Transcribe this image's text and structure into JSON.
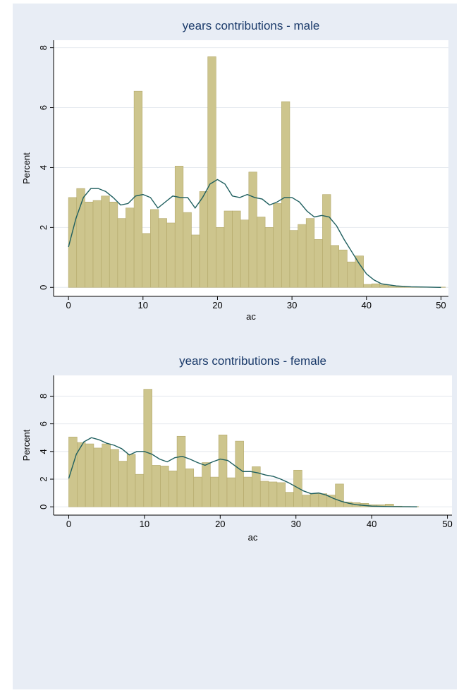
{
  "chart_data": [
    {
      "type": "histogram",
      "title": "years contributions - male",
      "x_label": "ac",
      "y_label": "Percent",
      "bins": [
        0,
        1.1,
        2.2,
        3.3,
        4.4,
        5.5,
        6.6,
        7.7,
        8.8,
        9.9,
        11,
        12.1,
        13.2,
        14.3,
        15.4,
        16.5,
        17.6,
        18.7,
        19.8,
        20.9,
        22,
        23.1,
        24.2,
        25.3,
        26.4,
        27.5,
        28.6,
        29.7,
        30.8,
        31.9,
        33,
        34.1,
        35.2,
        36.3,
        37.4,
        38.5,
        39.6,
        40.7,
        41.8,
        42.9,
        44,
        45.1,
        46.2,
        47.3,
        48.4,
        49.5,
        50.6
      ],
      "values": [
        3.0,
        3.3,
        2.85,
        2.9,
        3.05,
        2.85,
        2.3,
        2.65,
        6.55,
        1.8,
        2.6,
        2.3,
        2.15,
        4.05,
        2.5,
        1.75,
        3.2,
        7.7,
        2.0,
        2.55,
        2.55,
        2.25,
        3.85,
        2.35,
        2.0,
        2.8,
        6.2,
        1.9,
        2.1,
        2.3,
        1.6,
        3.1,
        1.4,
        1.25,
        0.85,
        1.05,
        0.1,
        0.12,
        0.08,
        0.05,
        0.03,
        0.02,
        0.02,
        0.01,
        0.01,
        0.01
      ],
      "color": "#cdc58d",
      "density": {
        "color": "#1f5f5f",
        "x": [
          0,
          1,
          2,
          3,
          4,
          5,
          6,
          7,
          8,
          9,
          10,
          11,
          12,
          13,
          14,
          15,
          16,
          17,
          18,
          19,
          20,
          21,
          22,
          23,
          24,
          25,
          26,
          27,
          28,
          29,
          30,
          31,
          32,
          33,
          34,
          35,
          36,
          37,
          38,
          39,
          40,
          41,
          42,
          44,
          46,
          48,
          50
        ],
        "values": [
          1.35,
          2.3,
          3.0,
          3.3,
          3.3,
          3.2,
          3.0,
          2.75,
          2.8,
          3.05,
          3.1,
          3.0,
          2.65,
          2.85,
          3.05,
          3.0,
          3.0,
          2.65,
          3.0,
          3.45,
          3.6,
          3.45,
          3.05,
          3.0,
          3.1,
          3.0,
          2.95,
          2.75,
          2.85,
          3.0,
          3.0,
          2.85,
          2.55,
          2.35,
          2.4,
          2.35,
          2.05,
          1.6,
          1.2,
          0.8,
          0.45,
          0.25,
          0.12,
          0.05,
          0.02,
          0.01,
          0
        ]
      },
      "xlim": [
        -2,
        51
      ],
      "ylim": [
        -0.3,
        8.25
      ],
      "xticks": [
        0,
        10,
        20,
        30,
        40,
        50
      ],
      "yticks": [
        0,
        2,
        4,
        6,
        8
      ],
      "grid": true
    },
    {
      "type": "histogram",
      "title": "years contributions - female",
      "x_label": "ac",
      "y_label": "Percent",
      "bins": [
        0,
        1.1,
        2.2,
        3.3,
        4.4,
        5.5,
        6.6,
        7.7,
        8.8,
        9.9,
        11,
        12.1,
        13.2,
        14.3,
        15.4,
        16.5,
        17.6,
        18.7,
        19.8,
        20.9,
        22,
        23.1,
        24.2,
        25.3,
        26.4,
        27.5,
        28.6,
        29.7,
        30.8,
        31.9,
        33,
        34.1,
        35.2,
        36.3,
        37.4,
        38.5,
        39.6,
        40.7,
        41.8,
        42.9,
        44,
        45.1,
        46.2
      ],
      "values": [
        5.05,
        4.65,
        4.55,
        4.25,
        4.55,
        4.15,
        3.3,
        3.8,
        2.35,
        8.5,
        3.0,
        2.95,
        2.6,
        5.1,
        2.75,
        2.15,
        3.2,
        2.15,
        5.2,
        2.1,
        4.75,
        2.15,
        2.9,
        1.85,
        1.8,
        1.75,
        1.05,
        2.65,
        0.85,
        0.95,
        0.95,
        0.85,
        1.65,
        0.35,
        0.3,
        0.25,
        0.15,
        0.15,
        0.2,
        0.05,
        0.03,
        0.02
      ],
      "color": "#cdc58d",
      "density": {
        "color": "#1f5f5f",
        "x": [
          0,
          1,
          2,
          3,
          4,
          5,
          6,
          7,
          8,
          9,
          10,
          11,
          12,
          13,
          14,
          15,
          16,
          17,
          18,
          19,
          20,
          21,
          22,
          23,
          24,
          25,
          26,
          27,
          28,
          29,
          30,
          31,
          32,
          33,
          34,
          35,
          36,
          37,
          38,
          40,
          42,
          44,
          46
        ],
        "values": [
          2.05,
          3.8,
          4.7,
          5.0,
          4.85,
          4.6,
          4.45,
          4.2,
          3.75,
          4.0,
          4.0,
          3.8,
          3.45,
          3.25,
          3.55,
          3.65,
          3.45,
          3.2,
          3.0,
          3.25,
          3.45,
          3.35,
          2.95,
          2.55,
          2.55,
          2.45,
          2.3,
          2.2,
          2.0,
          1.75,
          1.45,
          1.15,
          0.95,
          1.0,
          0.85,
          0.6,
          0.4,
          0.25,
          0.15,
          0.05,
          0.02,
          0.01,
          0
        ]
      },
      "xlim": [
        -2,
        50.6
      ],
      "ylim": [
        -0.6,
        9.5
      ],
      "xticks": [
        0,
        10,
        20,
        30,
        40,
        50
      ],
      "yticks": [
        0,
        2,
        4,
        6,
        8
      ],
      "grid": true
    }
  ]
}
